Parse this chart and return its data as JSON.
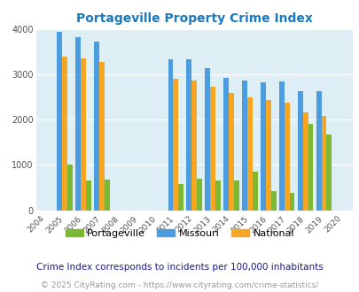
{
  "title": "Portageville Property Crime Index",
  "years": [
    2004,
    2005,
    2006,
    2007,
    2008,
    2009,
    2010,
    2011,
    2012,
    2013,
    2014,
    2015,
    2016,
    2017,
    2018,
    2019,
    2020
  ],
  "portageville": [
    0,
    1000,
    650,
    670,
    0,
    0,
    0,
    570,
    700,
    650,
    660,
    860,
    430,
    390,
    1900,
    1680,
    0
  ],
  "missouri": [
    0,
    3950,
    3820,
    3720,
    0,
    0,
    0,
    3330,
    3330,
    3140,
    2930,
    2860,
    2820,
    2840,
    2640,
    2640,
    0
  ],
  "national": [
    0,
    3400,
    3350,
    3270,
    0,
    0,
    0,
    2910,
    2860,
    2720,
    2590,
    2490,
    2440,
    2370,
    2160,
    2090,
    0
  ],
  "color_portageville": "#7db832",
  "color_missouri": "#4b9de0",
  "color_national": "#f5a623",
  "bg_color": "#ddeef5",
  "footnote1": "Crime Index corresponds to incidents per 100,000 inhabitants",
  "footnote2": "© 2025 CityRating.com - https://www.cityrating.com/crime-statistics/",
  "bar_width": 0.28
}
